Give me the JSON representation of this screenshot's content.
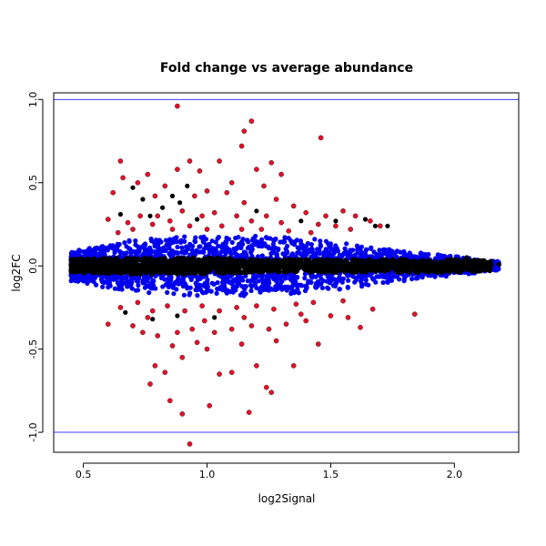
{
  "chart_data": {
    "type": "scatter",
    "title": "Fold change vs average abundance",
    "xlabel": "log2Signal",
    "ylabel": "log2FC",
    "xlim": [
      0.38,
      2.26
    ],
    "ylim": [
      -1.12,
      1.04
    ],
    "x_ticks": [
      0.5,
      1.0,
      1.5,
      2.0
    ],
    "x_tick_labels": [
      "0.5",
      "1.0",
      "1.5",
      "2.0"
    ],
    "y_ticks": [
      -1.0,
      -0.5,
      0.0,
      0.5,
      1.0
    ],
    "y_tick_labels": [
      "-1.0",
      "-0.5",
      "0.0",
      "0.5",
      "1.0"
    ],
    "grid": false,
    "reference_lines": [
      {
        "axis": "y",
        "value": 1.0,
        "color": "#3b3bff"
      },
      {
        "axis": "y",
        "value": -1.0,
        "color": "#3b3bff"
      }
    ],
    "series": [
      {
        "color": "#0000ee",
        "band": [
          [
            0.45,
            0.09
          ],
          [
            0.55,
            0.12
          ],
          [
            0.65,
            0.15
          ],
          [
            0.75,
            0.16
          ],
          [
            0.85,
            0.17
          ],
          [
            0.95,
            0.18
          ],
          [
            1.05,
            0.18
          ],
          [
            1.15,
            0.18
          ],
          [
            1.25,
            0.18
          ],
          [
            1.35,
            0.17
          ],
          [
            1.45,
            0.16
          ],
          [
            1.55,
            0.14
          ],
          [
            1.65,
            0.12
          ],
          [
            1.75,
            0.1
          ],
          [
            1.85,
            0.08
          ],
          [
            1.95,
            0.07
          ],
          [
            2.05,
            0.05
          ],
          [
            2.15,
            0.03
          ]
        ],
        "count": 2600,
        "x_range": [
          0.45,
          2.18
        ]
      },
      {
        "color": "#000000",
        "band": [
          [
            0.45,
            0.04
          ],
          [
            0.6,
            0.05
          ],
          [
            0.8,
            0.05
          ],
          [
            1.0,
            0.05
          ],
          [
            1.2,
            0.04
          ],
          [
            1.4,
            0.04
          ],
          [
            1.6,
            0.04
          ],
          [
            1.8,
            0.04
          ],
          [
            2.0,
            0.04
          ],
          [
            2.15,
            0.03
          ]
        ],
        "count": 2200,
        "x_range": [
          0.45,
          2.15
        ]
      },
      {
        "color": "#000000",
        "values": [
          [
            0.7,
            0.47
          ],
          [
            0.74,
            0.4
          ],
          [
            0.77,
            0.3
          ],
          [
            0.82,
            0.35
          ],
          [
            0.86,
            0.42
          ],
          [
            0.89,
            0.38
          ],
          [
            0.92,
            0.48
          ],
          [
            0.96,
            0.28
          ],
          [
            1.2,
            0.33
          ],
          [
            1.38,
            0.27
          ],
          [
            1.52,
            0.27
          ],
          [
            1.68,
            0.24
          ],
          [
            1.73,
            0.24
          ],
          [
            1.64,
            0.28
          ],
          [
            0.65,
            0.31
          ],
          [
            0.78,
            -0.32
          ],
          [
            0.88,
            -0.3
          ],
          [
            1.03,
            -0.31
          ],
          [
            0.67,
            -0.28
          ],
          [
            1.95,
            -0.04
          ],
          [
            2.05,
            0.05
          ],
          [
            2.18,
            0.01
          ],
          [
            2.1,
            0.03
          ]
        ]
      },
      {
        "color": "#e8102a",
        "values": [
          [
            0.88,
            0.96
          ],
          [
            1.18,
            0.87
          ],
          [
            1.15,
            0.81
          ],
          [
            1.46,
            0.77
          ],
          [
            1.14,
            0.72
          ],
          [
            0.65,
            0.63
          ],
          [
            0.93,
            0.63
          ],
          [
            1.05,
            0.63
          ],
          [
            1.26,
            0.62
          ],
          [
            1.2,
            0.58
          ],
          [
            1.3,
            0.55
          ],
          [
            0.66,
            0.53
          ],
          [
            0.76,
            0.55
          ],
          [
            0.72,
            0.5
          ],
          [
            0.88,
            0.58
          ],
          [
            0.97,
            0.57
          ],
          [
            1.1,
            0.5
          ],
          [
            1.23,
            0.48
          ],
          [
            1.0,
            0.45
          ],
          [
            0.62,
            0.44
          ],
          [
            0.79,
            0.42
          ],
          [
            0.83,
            0.48
          ],
          [
            0.95,
            0.42
          ],
          [
            1.08,
            0.44
          ],
          [
            1.15,
            0.38
          ],
          [
            1.28,
            0.4
          ],
          [
            1.35,
            0.36
          ],
          [
            1.4,
            0.32
          ],
          [
            1.48,
            0.3
          ],
          [
            1.55,
            0.33
          ],
          [
            1.6,
            0.3
          ],
          [
            1.66,
            0.27
          ],
          [
            1.7,
            0.24
          ],
          [
            0.6,
            0.28
          ],
          [
            0.68,
            0.26
          ],
          [
            0.73,
            0.3
          ],
          [
            0.8,
            0.3
          ],
          [
            0.85,
            0.27
          ],
          [
            0.9,
            0.33
          ],
          [
            0.98,
            0.3
          ],
          [
            1.03,
            0.32
          ],
          [
            1.12,
            0.3
          ],
          [
            1.18,
            0.27
          ],
          [
            1.24,
            0.3
          ],
          [
            1.3,
            0.26
          ],
          [
            1.45,
            0.25
          ],
          [
            1.52,
            0.24
          ],
          [
            1.58,
            0.22
          ],
          [
            0.64,
            0.2
          ],
          [
            0.7,
            0.22
          ],
          [
            0.78,
            0.25
          ],
          [
            0.86,
            0.22
          ],
          [
            0.93,
            0.24
          ],
          [
            1.0,
            0.22
          ],
          [
            1.06,
            0.24
          ],
          [
            1.14,
            0.22
          ],
          [
            1.22,
            0.22
          ],
          [
            1.33,
            0.21
          ],
          [
            1.42,
            0.2
          ],
          [
            0.93,
            -1.07
          ],
          [
            0.9,
            -0.89
          ],
          [
            1.01,
            -0.84
          ],
          [
            0.85,
            -0.81
          ],
          [
            1.17,
            -0.88
          ],
          [
            0.77,
            -0.71
          ],
          [
            1.24,
            -0.73
          ],
          [
            1.26,
            -0.76
          ],
          [
            0.83,
            -0.64
          ],
          [
            0.79,
            -0.6
          ],
          [
            1.05,
            -0.65
          ],
          [
            1.1,
            -0.64
          ],
          [
            1.35,
            -0.6
          ],
          [
            1.2,
            -0.6
          ],
          [
            0.9,
            -0.55
          ],
          [
            1.0,
            -0.5
          ],
          [
            0.86,
            -0.48
          ],
          [
            0.96,
            -0.46
          ],
          [
            1.14,
            -0.47
          ],
          [
            1.28,
            -0.45
          ],
          [
            1.45,
            -0.47
          ],
          [
            1.84,
            -0.29
          ],
          [
            0.6,
            -0.35
          ],
          [
            0.7,
            -0.36
          ],
          [
            0.74,
            -0.4
          ],
          [
            0.8,
            -0.42
          ],
          [
            0.88,
            -0.4
          ],
          [
            0.94,
            -0.38
          ],
          [
            1.03,
            -0.4
          ],
          [
            1.1,
            -0.38
          ],
          [
            1.18,
            -0.36
          ],
          [
            1.25,
            -0.38
          ],
          [
            1.32,
            -0.35
          ],
          [
            1.4,
            -0.33
          ],
          [
            1.5,
            -0.3
          ],
          [
            1.57,
            -0.31
          ],
          [
            1.62,
            -0.37
          ],
          [
            1.67,
            -0.26
          ],
          [
            0.65,
            -0.25
          ],
          [
            0.72,
            -0.22
          ],
          [
            0.78,
            -0.27
          ],
          [
            0.84,
            -0.24
          ],
          [
            0.91,
            -0.27
          ],
          [
            0.98,
            -0.24
          ],
          [
            1.05,
            -0.27
          ],
          [
            1.12,
            -0.25
          ],
          [
            1.2,
            -0.24
          ],
          [
            1.27,
            -0.26
          ],
          [
            1.36,
            -0.23
          ],
          [
            1.43,
            -0.22
          ],
          [
            1.55,
            -0.21
          ],
          [
            0.76,
            -0.31
          ],
          [
            0.99,
            -0.33
          ],
          [
            1.15,
            -0.31
          ],
          [
            1.38,
            -0.29
          ]
        ]
      }
    ]
  }
}
